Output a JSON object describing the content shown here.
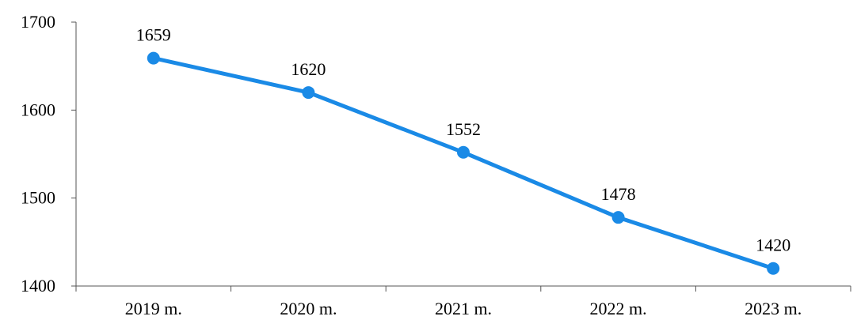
{
  "chart_data": {
    "type": "line",
    "categories": [
      "2019 m.",
      "2020 m.",
      "2021 m.",
      "2022 m.",
      "2023 m."
    ],
    "series": [
      {
        "values": [
          1659,
          1620,
          1552,
          1478,
          1420
        ],
        "color": "#1a8ae6"
      }
    ],
    "data_labels": [
      "1659",
      "1620",
      "1552",
      "1478",
      "1420"
    ],
    "ylim": [
      1400,
      1700
    ],
    "yticks": [
      1400,
      1500,
      1600,
      1700
    ],
    "ytick_labels": [
      "1400",
      "1500",
      "1600",
      "1700"
    ],
    "title": "",
    "xlabel": "",
    "ylabel": "",
    "grid": false,
    "legend": "none",
    "markers": "circle"
  }
}
